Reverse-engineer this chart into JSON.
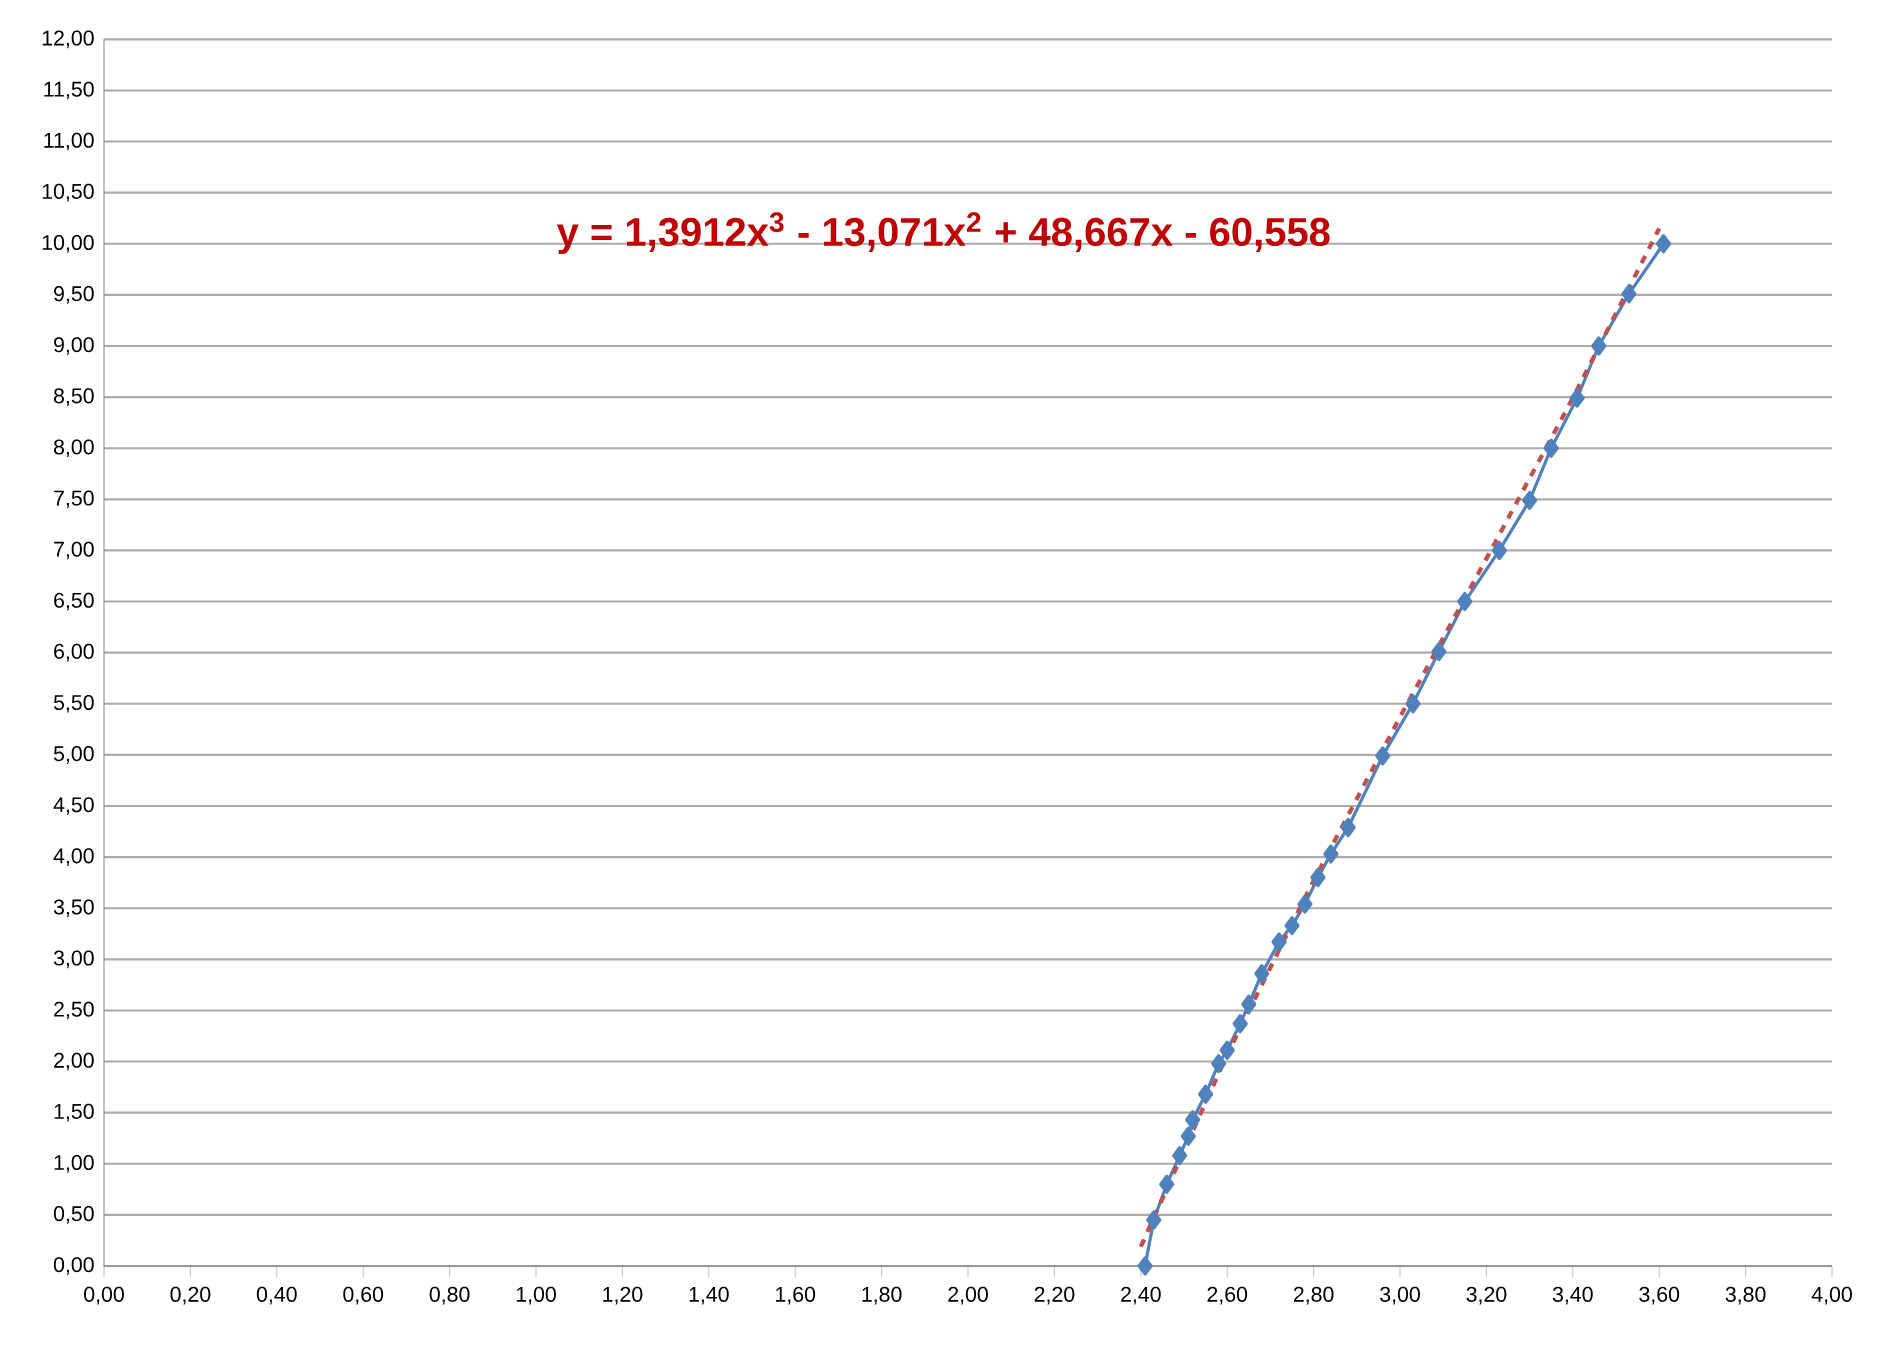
{
  "chart_data": {
    "type": "line",
    "annotations": [
      "y = 1,3912x$^{3}$ - 13,071x$^{2}$ + 48,667x - 60,558"
    ],
    "series": [
      {
        "color": "#4f81bd",
        "marker": "diamond",
        "line_style": "solid",
        "x": [
          2.41,
          2.43,
          2.46,
          2.49,
          2.51,
          2.52,
          2.55,
          2.58,
          2.6,
          2.63,
          2.65,
          2.68,
          2.72,
          2.75,
          2.78,
          2.81,
          2.84,
          2.88,
          2.96,
          3.03,
          3.09,
          3.15,
          3.23,
          3.3,
          3.35,
          3.41,
          3.46,
          3.53,
          3.61
        ],
        "values": [
          0.0,
          0.45,
          0.8,
          1.08,
          1.27,
          1.43,
          1.68,
          1.98,
          2.11,
          2.37,
          2.56,
          2.86,
          3.17,
          3.33,
          3.54,
          3.8,
          4.03,
          4.29,
          4.99,
          5.5,
          6.01,
          6.5,
          7.0,
          7.49,
          8.0,
          8.49,
          9.0,
          9.51,
          10.0
        ]
      },
      {
        "type": "line",
        "color": "#c0504d",
        "marker": "none",
        "line_style": "dashed",
        "x": [
          2.4,
          2.6,
          2.8,
          3.0,
          3.2,
          3.4,
          3.6
        ],
        "values": [
          0.19,
          2.07,
          3.77,
          5.37,
          6.92,
          8.49,
          10.15
        ]
      }
    ],
    "xlim": [
      0,
      4
    ],
    "ylim": [
      0,
      12
    ],
    "xticks": [
      {
        "value": 0,
        "label": "0,00"
      },
      {
        "value": 0.2,
        "label": "0,20"
      },
      {
        "value": 0.4,
        "label": "0,40"
      },
      {
        "value": 0.6,
        "label": "0,60"
      },
      {
        "value": 0.8,
        "label": "0,80"
      },
      {
        "value": 1.0,
        "label": "1,00"
      },
      {
        "value": 1.2,
        "label": "1,20"
      },
      {
        "value": 1.4,
        "label": "1,40"
      },
      {
        "value": 1.6,
        "label": "1,60"
      },
      {
        "value": 1.8,
        "label": "1,80"
      },
      {
        "value": 2.0,
        "label": "2,00"
      },
      {
        "value": 2.2,
        "label": "2,20"
      },
      {
        "value": 2.4,
        "label": "2,40"
      },
      {
        "value": 2.6,
        "label": "2,60"
      },
      {
        "value": 2.8,
        "label": "2,80"
      },
      {
        "value": 3.0,
        "label": "3,00"
      },
      {
        "value": 3.2,
        "label": "3,20"
      },
      {
        "value": 3.4,
        "label": "3,40"
      },
      {
        "value": 3.6,
        "label": "3,60"
      },
      {
        "value": 3.8,
        "label": "3,80"
      },
      {
        "value": 4.0,
        "label": "4,00"
      }
    ],
    "yticks": [
      {
        "value": 0,
        "label": "0,00"
      },
      {
        "value": 0.5,
        "label": "0,50"
      },
      {
        "value": 1.0,
        "label": "1,00"
      },
      {
        "value": 1.5,
        "label": "1,50"
      },
      {
        "value": 2.0,
        "label": "2,00"
      },
      {
        "value": 2.5,
        "label": "2,50"
      },
      {
        "value": 3.0,
        "label": "3,00"
      },
      {
        "value": 3.5,
        "label": "3,50"
      },
      {
        "value": 4.0,
        "label": "4,00"
      },
      {
        "value": 4.5,
        "label": "4,50"
      },
      {
        "value": 5.0,
        "label": "5,00"
      },
      {
        "value": 5.5,
        "label": "5,50"
      },
      {
        "value": 6.0,
        "label": "6,00"
      },
      {
        "value": 6.5,
        "label": "6,50"
      },
      {
        "value": 7.0,
        "label": "7,00"
      },
      {
        "value": 7.5,
        "label": "7,50"
      },
      {
        "value": 8.0,
        "label": "8,00"
      },
      {
        "value": 8.5,
        "label": "8,50"
      },
      {
        "value": 9.0,
        "label": "9,00"
      },
      {
        "value": 9.5,
        "label": "9,50"
      },
      {
        "value": 10.0,
        "label": "10,00"
      },
      {
        "value": 10.5,
        "label": "10,50"
      },
      {
        "value": 11.0,
        "label": "11,00"
      },
      {
        "value": 11.5,
        "label": "11,50"
      },
      {
        "value": 12.0,
        "label": "12,00"
      }
    ],
    "grid": "y"
  }
}
